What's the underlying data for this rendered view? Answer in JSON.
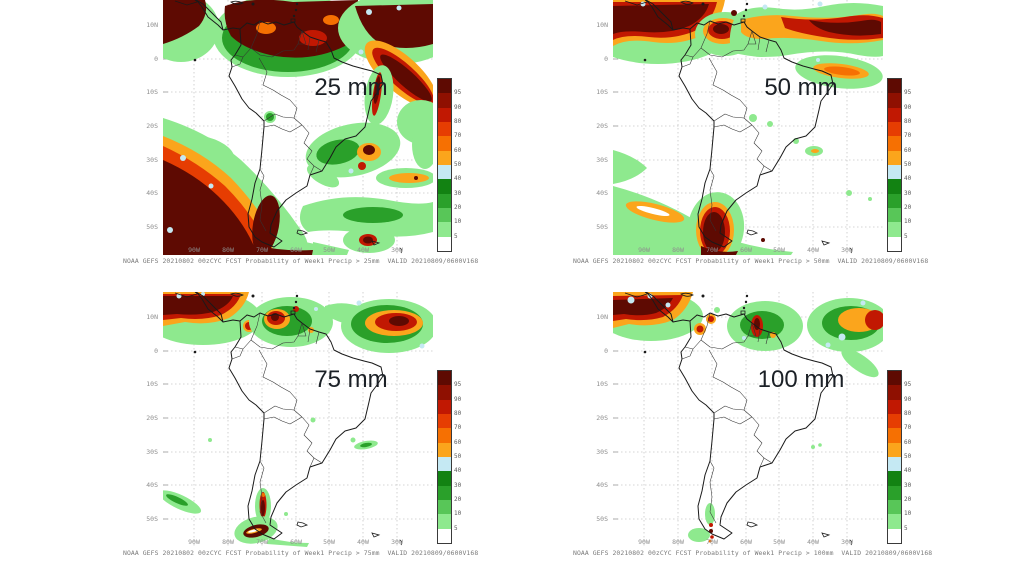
{
  "axes": {
    "lat_labels": [
      "10N",
      "0",
      "10S",
      "20S",
      "30S",
      "40S",
      "50S"
    ],
    "lon_labels": [
      "90W",
      "80W",
      "70W",
      "60W",
      "50W",
      "40W",
      "30W"
    ]
  },
  "colorbar": {
    "tick_labels": [
      "95",
      "90",
      "80",
      "70",
      "60",
      "50",
      "40",
      "30",
      "20",
      "10",
      "5"
    ],
    "segment_colors": [
      "#5e0a02",
      "#8f1001",
      "#c11802",
      "#e63d02",
      "#f67002",
      "#fba51c",
      "#c5e9f3",
      "#128212",
      "#2aa02a",
      "#58c658",
      "#8ee98e",
      "#ffffff"
    ]
  },
  "panels": [
    {
      "threshold_label": "25 mm",
      "caption": "NOAA GEFS 20210802 00zCYC FCST Probability of Week1 Precip > 25mm  VALID 20210809/0600V168"
    },
    {
      "threshold_label": "50 mm",
      "caption": "NOAA GEFS 20210802 00zCYC FCST Probability of Week1 Precip > 50mm  VALID 20210809/0600V168"
    },
    {
      "threshold_label": "75 mm",
      "caption": "NOAA GEFS 20210802 00zCYC FCST Probability of Week1 Precip > 75mm  VALID 20210809/0600V168"
    },
    {
      "threshold_label": "100 mm",
      "caption": "NOAA GEFS 20210802 00zCYC FCST Probability of Week1 Precip > 100mm  VALID 20210809/0600V168"
    }
  ]
}
